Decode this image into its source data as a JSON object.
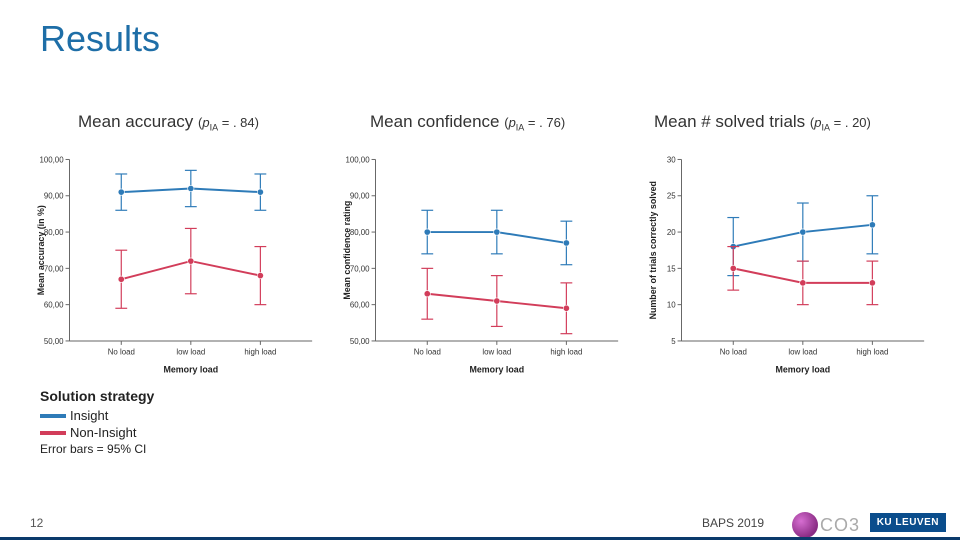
{
  "title": "Results",
  "legend": {
    "heading": "Solution strategy",
    "items": [
      {
        "label": "Insight",
        "color": "#2e7bb8"
      },
      {
        "label": "Non-Insight",
        "color": "#d23d5a"
      }
    ],
    "note": "Error bars = 95% CI"
  },
  "footer": {
    "page": "12",
    "event": "BAPS 2019",
    "co3": "CO3",
    "ku": "KU LEUVEN"
  },
  "colors": {
    "insight": "#2e7bb8",
    "noninsight": "#d23d5a",
    "axis": "#666666",
    "grid": "#e5e5e5",
    "text": "#333333",
    "title": "#1e6ea7"
  },
  "charts": [
    {
      "id": "accuracy",
      "title_base": "Mean accuracy",
      "pia": ". 84",
      "ylabel": "Mean accuracy (in %)",
      "xlabel": "Memory load",
      "categories": [
        "No load",
        "low load",
        "high load"
      ],
      "ylim": [
        50,
        100
      ],
      "ytick_step": 10,
      "series": [
        {
          "name": "insight",
          "color": "#2e7bb8",
          "values": [
            91,
            92,
            91
          ],
          "ci": [
            5,
            5,
            5
          ]
        },
        {
          "name": "noninsight",
          "color": "#d23d5a",
          "values": [
            67,
            72,
            68
          ],
          "ci": [
            8,
            9,
            8
          ]
        }
      ]
    },
    {
      "id": "confidence",
      "title_base": "Mean confidence",
      "pia": ". 76",
      "ylabel": "Mean confidence rating",
      "xlabel": "Memory load",
      "categories": [
        "No load",
        "low load",
        "high load"
      ],
      "ylim": [
        50,
        100
      ],
      "ytick_step": 10,
      "series": [
        {
          "name": "insight",
          "color": "#2e7bb8",
          "values": [
            80,
            80,
            77
          ],
          "ci": [
            6,
            6,
            6
          ]
        },
        {
          "name": "noninsight",
          "color": "#d23d5a",
          "values": [
            63,
            61,
            59
          ],
          "ci": [
            7,
            7,
            7
          ]
        }
      ]
    },
    {
      "id": "solved",
      "title_base": "Mean # solved trials",
      "pia": ". 20",
      "ylabel": "Number of trials correctly solved",
      "xlabel": "Memory load",
      "categories": [
        "No load",
        "low load",
        "high load"
      ],
      "ylim": [
        5,
        30
      ],
      "ytick_step": 5,
      "series": [
        {
          "name": "insight",
          "color": "#2e7bb8",
          "values": [
            18,
            20,
            21
          ],
          "ci": [
            4,
            4,
            4
          ]
        },
        {
          "name": "noninsight",
          "color": "#d23d5a",
          "values": [
            15,
            13,
            13
          ],
          "ci": [
            3,
            3,
            3
          ]
        }
      ]
    }
  ]
}
